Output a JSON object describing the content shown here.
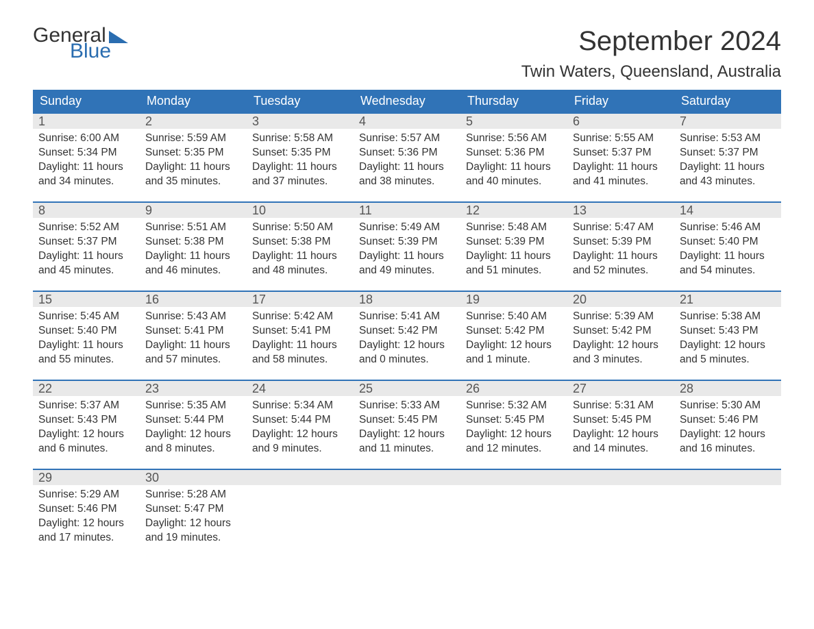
{
  "colors": {
    "header_bg": "#3073b7",
    "header_text": "#ffffff",
    "daynum_bg": "#e9e9e9",
    "daynum_text": "#555555",
    "body_text": "#333333",
    "week_border": "#3073b7",
    "page_bg": "#ffffff",
    "logo_accent": "#2a6db0"
  },
  "typography": {
    "month_title_fontsize": 40,
    "location_fontsize": 24,
    "dayhead_fontsize": 18,
    "daynum_fontsize": 18,
    "body_fontsize": 15.5,
    "font_family": "Arial"
  },
  "logo": {
    "line1": "General",
    "line2": "Blue"
  },
  "title": "September 2024",
  "location": "Twin Waters, Queensland, Australia",
  "day_headers": [
    "Sunday",
    "Monday",
    "Tuesday",
    "Wednesday",
    "Thursday",
    "Friday",
    "Saturday"
  ],
  "weeks": [
    [
      {
        "num": "1",
        "sunrise": "Sunrise: 6:00 AM",
        "sunset": "Sunset: 5:34 PM",
        "dl1": "Daylight: 11 hours",
        "dl2": "and 34 minutes."
      },
      {
        "num": "2",
        "sunrise": "Sunrise: 5:59 AM",
        "sunset": "Sunset: 5:35 PM",
        "dl1": "Daylight: 11 hours",
        "dl2": "and 35 minutes."
      },
      {
        "num": "3",
        "sunrise": "Sunrise: 5:58 AM",
        "sunset": "Sunset: 5:35 PM",
        "dl1": "Daylight: 11 hours",
        "dl2": "and 37 minutes."
      },
      {
        "num": "4",
        "sunrise": "Sunrise: 5:57 AM",
        "sunset": "Sunset: 5:36 PM",
        "dl1": "Daylight: 11 hours",
        "dl2": "and 38 minutes."
      },
      {
        "num": "5",
        "sunrise": "Sunrise: 5:56 AM",
        "sunset": "Sunset: 5:36 PM",
        "dl1": "Daylight: 11 hours",
        "dl2": "and 40 minutes."
      },
      {
        "num": "6",
        "sunrise": "Sunrise: 5:55 AM",
        "sunset": "Sunset: 5:37 PM",
        "dl1": "Daylight: 11 hours",
        "dl2": "and 41 minutes."
      },
      {
        "num": "7",
        "sunrise": "Sunrise: 5:53 AM",
        "sunset": "Sunset: 5:37 PM",
        "dl1": "Daylight: 11 hours",
        "dl2": "and 43 minutes."
      }
    ],
    [
      {
        "num": "8",
        "sunrise": "Sunrise: 5:52 AM",
        "sunset": "Sunset: 5:37 PM",
        "dl1": "Daylight: 11 hours",
        "dl2": "and 45 minutes."
      },
      {
        "num": "9",
        "sunrise": "Sunrise: 5:51 AM",
        "sunset": "Sunset: 5:38 PM",
        "dl1": "Daylight: 11 hours",
        "dl2": "and 46 minutes."
      },
      {
        "num": "10",
        "sunrise": "Sunrise: 5:50 AM",
        "sunset": "Sunset: 5:38 PM",
        "dl1": "Daylight: 11 hours",
        "dl2": "and 48 minutes."
      },
      {
        "num": "11",
        "sunrise": "Sunrise: 5:49 AM",
        "sunset": "Sunset: 5:39 PM",
        "dl1": "Daylight: 11 hours",
        "dl2": "and 49 minutes."
      },
      {
        "num": "12",
        "sunrise": "Sunrise: 5:48 AM",
        "sunset": "Sunset: 5:39 PM",
        "dl1": "Daylight: 11 hours",
        "dl2": "and 51 minutes."
      },
      {
        "num": "13",
        "sunrise": "Sunrise: 5:47 AM",
        "sunset": "Sunset: 5:39 PM",
        "dl1": "Daylight: 11 hours",
        "dl2": "and 52 minutes."
      },
      {
        "num": "14",
        "sunrise": "Sunrise: 5:46 AM",
        "sunset": "Sunset: 5:40 PM",
        "dl1": "Daylight: 11 hours",
        "dl2": "and 54 minutes."
      }
    ],
    [
      {
        "num": "15",
        "sunrise": "Sunrise: 5:45 AM",
        "sunset": "Sunset: 5:40 PM",
        "dl1": "Daylight: 11 hours",
        "dl2": "and 55 minutes."
      },
      {
        "num": "16",
        "sunrise": "Sunrise: 5:43 AM",
        "sunset": "Sunset: 5:41 PM",
        "dl1": "Daylight: 11 hours",
        "dl2": "and 57 minutes."
      },
      {
        "num": "17",
        "sunrise": "Sunrise: 5:42 AM",
        "sunset": "Sunset: 5:41 PM",
        "dl1": "Daylight: 11 hours",
        "dl2": "and 58 minutes."
      },
      {
        "num": "18",
        "sunrise": "Sunrise: 5:41 AM",
        "sunset": "Sunset: 5:42 PM",
        "dl1": "Daylight: 12 hours",
        "dl2": "and 0 minutes."
      },
      {
        "num": "19",
        "sunrise": "Sunrise: 5:40 AM",
        "sunset": "Sunset: 5:42 PM",
        "dl1": "Daylight: 12 hours",
        "dl2": "and 1 minute."
      },
      {
        "num": "20",
        "sunrise": "Sunrise: 5:39 AM",
        "sunset": "Sunset: 5:42 PM",
        "dl1": "Daylight: 12 hours",
        "dl2": "and 3 minutes."
      },
      {
        "num": "21",
        "sunrise": "Sunrise: 5:38 AM",
        "sunset": "Sunset: 5:43 PM",
        "dl1": "Daylight: 12 hours",
        "dl2": "and 5 minutes."
      }
    ],
    [
      {
        "num": "22",
        "sunrise": "Sunrise: 5:37 AM",
        "sunset": "Sunset: 5:43 PM",
        "dl1": "Daylight: 12 hours",
        "dl2": "and 6 minutes."
      },
      {
        "num": "23",
        "sunrise": "Sunrise: 5:35 AM",
        "sunset": "Sunset: 5:44 PM",
        "dl1": "Daylight: 12 hours",
        "dl2": "and 8 minutes."
      },
      {
        "num": "24",
        "sunrise": "Sunrise: 5:34 AM",
        "sunset": "Sunset: 5:44 PM",
        "dl1": "Daylight: 12 hours",
        "dl2": "and 9 minutes."
      },
      {
        "num": "25",
        "sunrise": "Sunrise: 5:33 AM",
        "sunset": "Sunset: 5:45 PM",
        "dl1": "Daylight: 12 hours",
        "dl2": "and 11 minutes."
      },
      {
        "num": "26",
        "sunrise": "Sunrise: 5:32 AM",
        "sunset": "Sunset: 5:45 PM",
        "dl1": "Daylight: 12 hours",
        "dl2": "and 12 minutes."
      },
      {
        "num": "27",
        "sunrise": "Sunrise: 5:31 AM",
        "sunset": "Sunset: 5:45 PM",
        "dl1": "Daylight: 12 hours",
        "dl2": "and 14 minutes."
      },
      {
        "num": "28",
        "sunrise": "Sunrise: 5:30 AM",
        "sunset": "Sunset: 5:46 PM",
        "dl1": "Daylight: 12 hours",
        "dl2": "and 16 minutes."
      }
    ],
    [
      {
        "num": "29",
        "sunrise": "Sunrise: 5:29 AM",
        "sunset": "Sunset: 5:46 PM",
        "dl1": "Daylight: 12 hours",
        "dl2": "and 17 minutes."
      },
      {
        "num": "30",
        "sunrise": "Sunrise: 5:28 AM",
        "sunset": "Sunset: 5:47 PM",
        "dl1": "Daylight: 12 hours",
        "dl2": "and 19 minutes."
      },
      {
        "num": "",
        "sunrise": "",
        "sunset": "",
        "dl1": "",
        "dl2": ""
      },
      {
        "num": "",
        "sunrise": "",
        "sunset": "",
        "dl1": "",
        "dl2": ""
      },
      {
        "num": "",
        "sunrise": "",
        "sunset": "",
        "dl1": "",
        "dl2": ""
      },
      {
        "num": "",
        "sunrise": "",
        "sunset": "",
        "dl1": "",
        "dl2": ""
      },
      {
        "num": "",
        "sunrise": "",
        "sunset": "",
        "dl1": "",
        "dl2": ""
      }
    ]
  ]
}
